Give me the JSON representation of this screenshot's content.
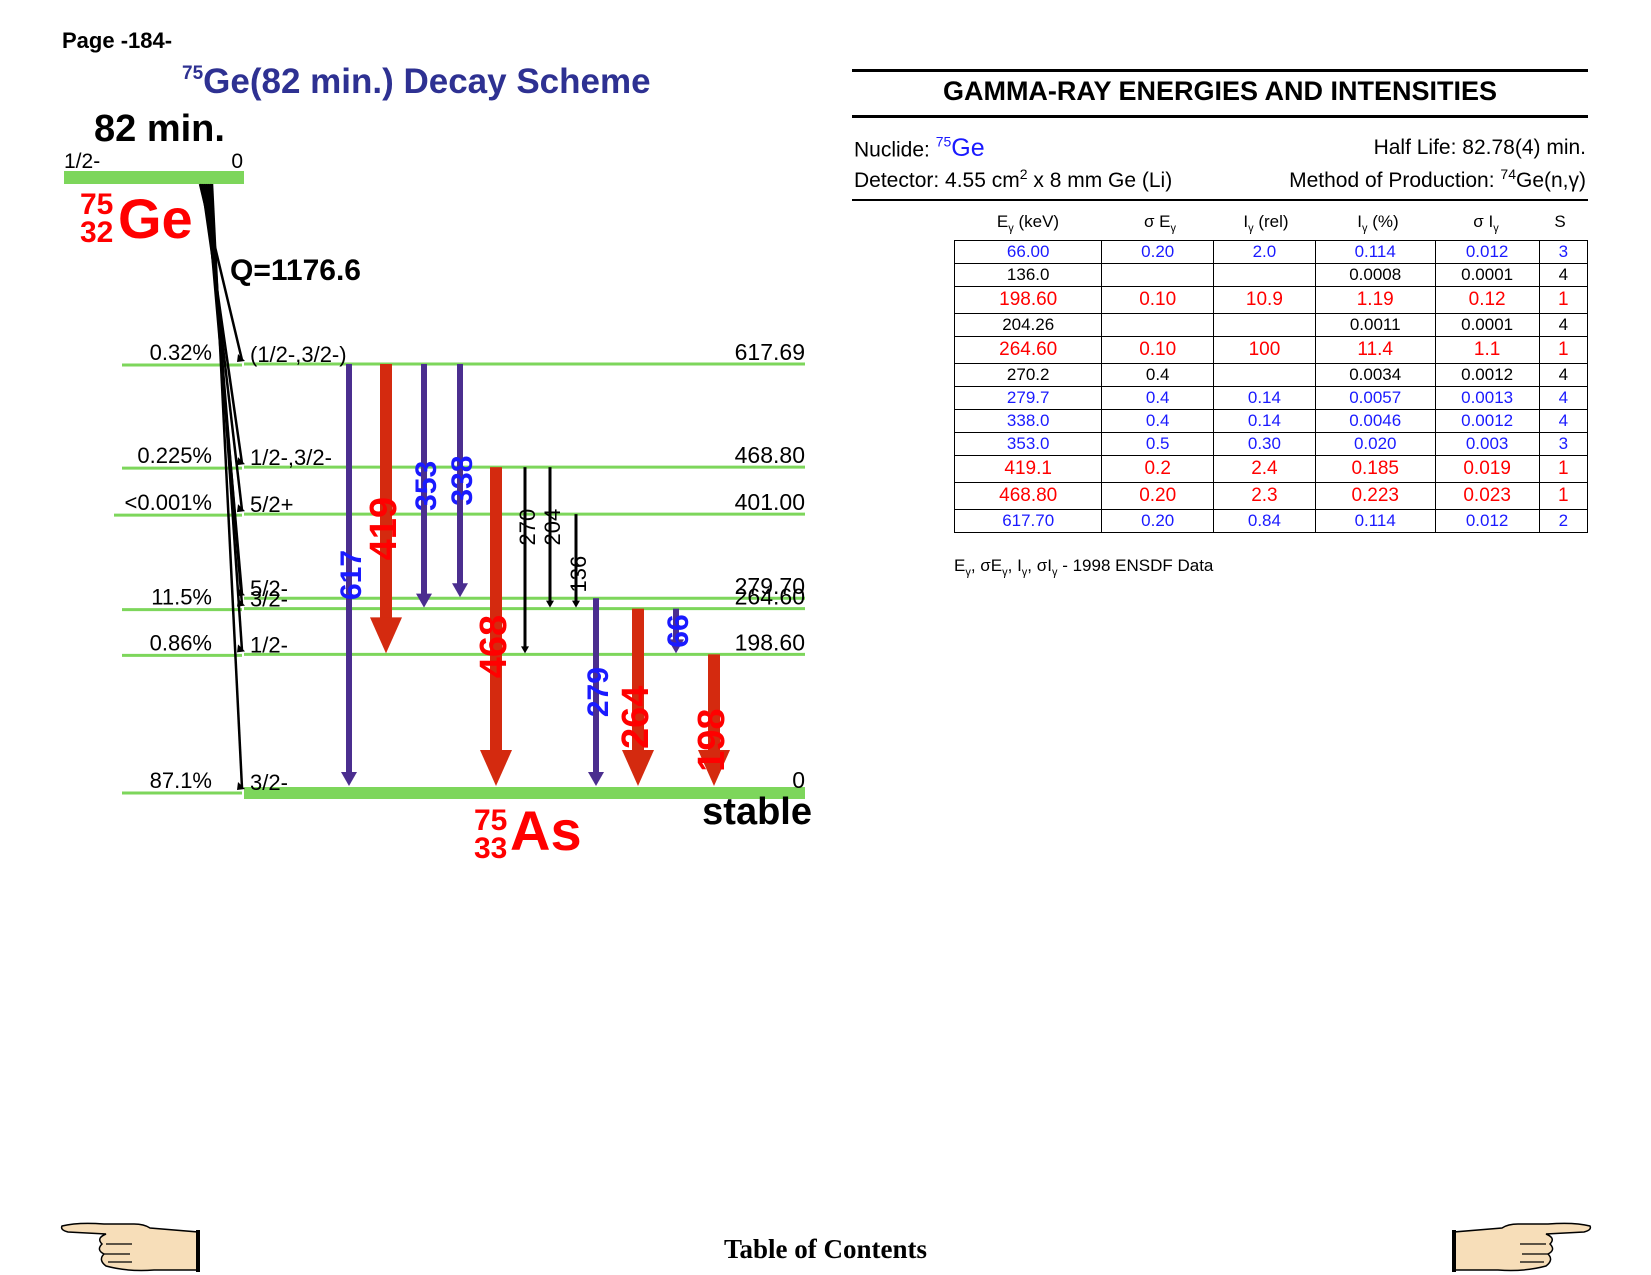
{
  "page_label": "Page -184-",
  "title": {
    "mass": "75",
    "text": "Ge(82 min.) Decay Scheme"
  },
  "parent": {
    "half_life": "82 min.",
    "spin": "1/2-",
    "energy": "0",
    "mass": "75",
    "z": "32",
    "symbol": "Ge",
    "q_value": "Q=1176.6"
  },
  "daughter": {
    "mass": "75",
    "z": "33",
    "symbol": "As",
    "stable_label": "stable"
  },
  "levels": [
    {
      "energy_label": "617.69",
      "spin": "(1/2-,3/2-)",
      "feeding": "0.32%"
    },
    {
      "energy_label": "468.80",
      "spin": "1/2-,3/2-",
      "feeding": "0.225%"
    },
    {
      "energy_label": "401.00",
      "spin": "5/2+",
      "feeding": "<0.001%"
    },
    {
      "energy_label": "279.70",
      "spin": "5/2-",
      "feeding": ""
    },
    {
      "energy_label": "264.60",
      "spin": "3/2-",
      "feeding": "11.5%"
    },
    {
      "energy_label": "198.60",
      "spin": "1/2-",
      "feeding": "0.86%"
    },
    {
      "energy_label": "0",
      "spin": "3/2-",
      "feeding": "87.1%"
    }
  ],
  "transitions": [
    {
      "label": "617",
      "from": "617.69",
      "to": "0",
      "color": "#1a1aff",
      "arrow": "#4b2e8f",
      "style": "medium"
    },
    {
      "label": "419",
      "from": "617.69",
      "to": "198.60",
      "color": "#ff0000",
      "arrow": "#d42a0f",
      "style": "thick"
    },
    {
      "label": "353",
      "from": "617.69",
      "to": "264.60",
      "color": "#1a1aff",
      "arrow": "#4b2e8f",
      "style": "medium"
    },
    {
      "label": "338",
      "from": "617.69",
      "to": "279.70",
      "color": "#1a1aff",
      "arrow": "#4b2e8f",
      "style": "medium"
    },
    {
      "label": "468",
      "from": "468.80",
      "to": "0",
      "color": "#ff0000",
      "arrow": "#d42a0f",
      "style": "thick"
    },
    {
      "label": "270",
      "from": "468.80",
      "to": "198.60",
      "color": "#000000",
      "arrow": "#000000",
      "style": "thin"
    },
    {
      "label": "204",
      "from": "468.80",
      "to": "264.60",
      "color": "#000000",
      "arrow": "#000000",
      "style": "thin"
    },
    {
      "label": "136",
      "from": "401.00",
      "to": "264.60",
      "color": "#000000",
      "arrow": "#000000",
      "style": "thin"
    },
    {
      "label": "279",
      "from": "279.70",
      "to": "0",
      "color": "#1a1aff",
      "arrow": "#4b2e8f",
      "style": "medium"
    },
    {
      "label": "264",
      "from": "264.60",
      "to": "0",
      "color": "#ff0000",
      "arrow": "#d42a0f",
      "style": "thick"
    },
    {
      "label": "66",
      "from": "264.60",
      "to": "198.60",
      "color": "#1a1aff",
      "arrow": "#4b2e8f",
      "style": "medium"
    },
    {
      "label": "198",
      "from": "198.60",
      "to": "0",
      "color": "#ff0000",
      "arrow": "#d42a0f",
      "style": "thick"
    }
  ],
  "gamma": {
    "title": "GAMMA-RAY ENERGIES AND INTENSITIES",
    "nuclide_label": "Nuclide: ",
    "nuclide_mass": "75",
    "nuclide_symbol": "Ge",
    "half_life": "Half Life: 82.78(4) min.",
    "detector_pre": "Detector: 4.55 cm",
    "detector_sup": "2",
    "detector_post": " x 8 mm Ge (Li)",
    "production_pre": "Method of Production: ",
    "production_sup": "74",
    "production_post": "Ge(n,γ)",
    "headers": [
      "Eγ (keV)",
      "σ Eγ",
      "Iγ (rel)",
      "Iγ (%)",
      "σ Iγ",
      "S"
    ],
    "rows": [
      {
        "c": "blue",
        "v": [
          "66.00",
          "0.20",
          "2.0",
          "0.114",
          "0.012",
          "3"
        ]
      },
      {
        "c": "black",
        "v": [
          "136.0",
          "",
          "",
          "0.0008",
          "0.0001",
          "4"
        ]
      },
      {
        "c": "red",
        "v": [
          "198.60",
          "0.10",
          "10.9",
          "1.19",
          "0.12",
          "1"
        ]
      },
      {
        "c": "black",
        "v": [
          "204.26",
          "",
          "",
          "0.0011",
          "0.0001",
          "4"
        ]
      },
      {
        "c": "red",
        "v": [
          "264.60",
          "0.10",
          "100",
          "11.4",
          "1.1",
          "1"
        ]
      },
      {
        "c": "black",
        "v": [
          "270.2",
          "0.4",
          "",
          "0.0034",
          "0.0012",
          "4"
        ]
      },
      {
        "c": "blue",
        "v": [
          "279.7",
          "0.4",
          "0.14",
          "0.0057",
          "0.0013",
          "4"
        ]
      },
      {
        "c": "blue",
        "v": [
          "338.0",
          "0.4",
          "0.14",
          "0.0046",
          "0.0012",
          "4"
        ]
      },
      {
        "c": "blue",
        "v": [
          "353.0",
          "0.5",
          "0.30",
          "0.020",
          "0.003",
          "3"
        ]
      },
      {
        "c": "red",
        "v": [
          "419.1",
          "0.2",
          "2.4",
          "0.185",
          "0.019",
          "1"
        ]
      },
      {
        "c": "red",
        "v": [
          "468.80",
          "0.20",
          "2.3",
          "0.223",
          "0.023",
          "1"
        ]
      },
      {
        "c": "blue",
        "v": [
          "617.70",
          "0.20",
          "0.84",
          "0.114",
          "0.012",
          "2"
        ]
      }
    ],
    "footnote": "Eγ, σEγ, Iγ, σIγ - 1998 ENSDF Data"
  },
  "toc_label": "Table of Contents",
  "nav": {
    "prev_icon": "pointing-hand-left-icon",
    "next_icon": "pointing-hand-right-icon"
  },
  "colors": {
    "level": "#7dd65b",
    "title": "#2e3192",
    "red": "#ff0000",
    "blue": "#1a1aff",
    "arrow_red": "#d42a0f",
    "arrow_blue": "#4b2e8f"
  }
}
